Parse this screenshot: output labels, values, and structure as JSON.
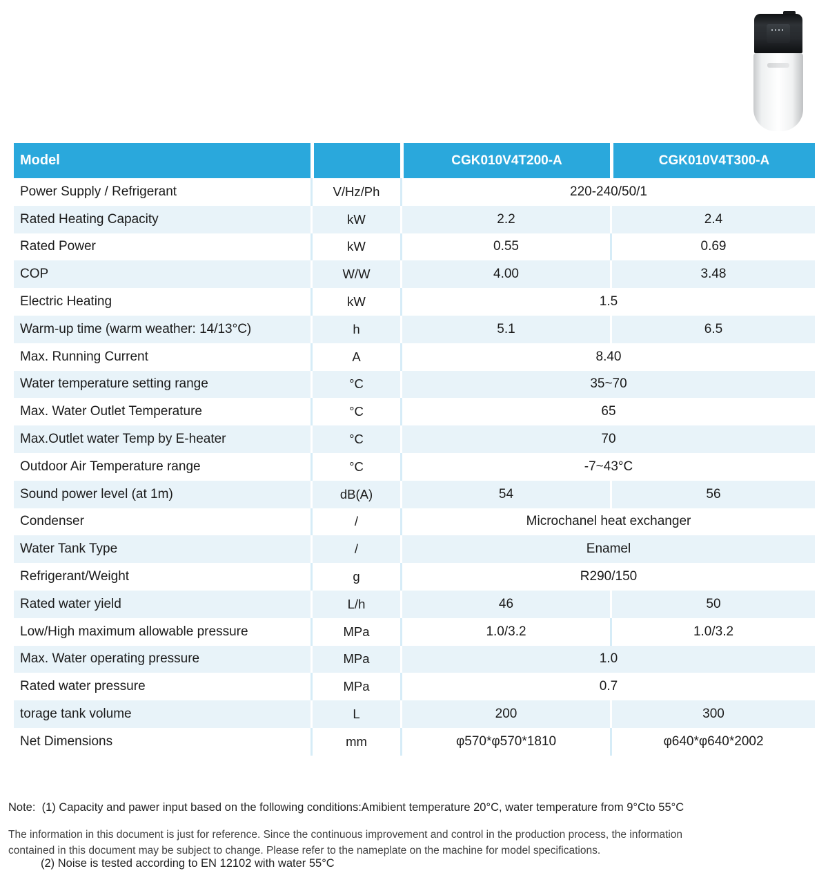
{
  "header": {
    "model_label": "Model",
    "unit_label": "",
    "columns": [
      "CGK010V4T200-A",
      "CGK010V4T300-A"
    ]
  },
  "rows": [
    {
      "label": "Power Supply / Refrigerant",
      "unit": "V/Hz/Ph",
      "span": "220-240/50/1"
    },
    {
      "label": "Rated Heating Capacity",
      "unit": "kW",
      "v1": "2.2",
      "v2": "2.4"
    },
    {
      "label": "Rated  Power",
      "unit": "kW",
      "v1": "0.55",
      "v2": "0.69"
    },
    {
      "label": "COP",
      "unit": "W/W",
      "v1": "4.00",
      "v2": "3.48"
    },
    {
      "label": "Electric Heating",
      "unit": "kW",
      "span": "1.5"
    },
    {
      "label": "Warm-up time (warm weather: 14/13°C)",
      "unit": "h",
      "v1": "5.1",
      "v2": "6.5"
    },
    {
      "label": "Max. Running Current",
      "unit": "A",
      "span": "8.40"
    },
    {
      "label": "Water temperature setting range",
      "unit": "°C",
      "span": "35~70"
    },
    {
      "label": "Max. Water Outlet Temperature",
      "unit": "°C",
      "span": "65"
    },
    {
      "label": "Max.Outlet water Temp by E-heater",
      "unit": "°C",
      "span": "70"
    },
    {
      "label": "Outdoor Air Temperature range",
      "unit": "°C",
      "span": "-7~43°C"
    },
    {
      "label": "Sound power level (at 1m)",
      "unit": "dB(A)",
      "v1": "54",
      "v2": "56"
    },
    {
      "label": "Condenser",
      "unit": "/",
      "span": "Microchanel heat exchanger"
    },
    {
      "label": "Water Tank Type",
      "unit": "/",
      "span": "Enamel"
    },
    {
      "label": "Refrigerant/Weight",
      "unit": "g",
      "span": "R290/150"
    },
    {
      "label": "Rated water yield",
      "unit": "L/h",
      "v1": "46",
      "v2": "50"
    },
    {
      "label": "Low/High maximum allowable pressure",
      "unit": "MPa",
      "v1": "1.0/3.2",
      "v2": "1.0/3.2"
    },
    {
      "label": "Max. Water operating pressure",
      "unit": "MPa",
      "span": "1.0"
    },
    {
      "label": "Rated water pressure",
      "unit": "MPa",
      "span": "0.7"
    },
    {
      "label": "torage tank volume",
      "unit": "L",
      "v1": "200",
      "v2": "300"
    },
    {
      "label": "Net Dimensions",
      "unit": "mm",
      "v1": "φ570*φ570*1810",
      "v2": "φ640*φ640*2002"
    }
  ],
  "notes": {
    "prefix": "Note:  ",
    "items": [
      "(1) Capacity and pawer input based on the following conditions:Amibient temperature 20°C, water temperature from 9°Cto 55°C",
      "(2) Noise is tested according to EN 12102 with water 55°C"
    ]
  },
  "disclaimer": {
    "line1": "The information in this document is just for reference. Since the continuous improvement and control in the production process, the information",
    "line2": "contained in this document may be subject to change. Please refer to the nameplate on the machine for model specifications."
  },
  "colors": {
    "header_blue": "#2aa8dc",
    "row_tint": "#e8f3f9",
    "divider_on_white": "#d6ecf7",
    "divider_on_tint": "#ffffff"
  }
}
